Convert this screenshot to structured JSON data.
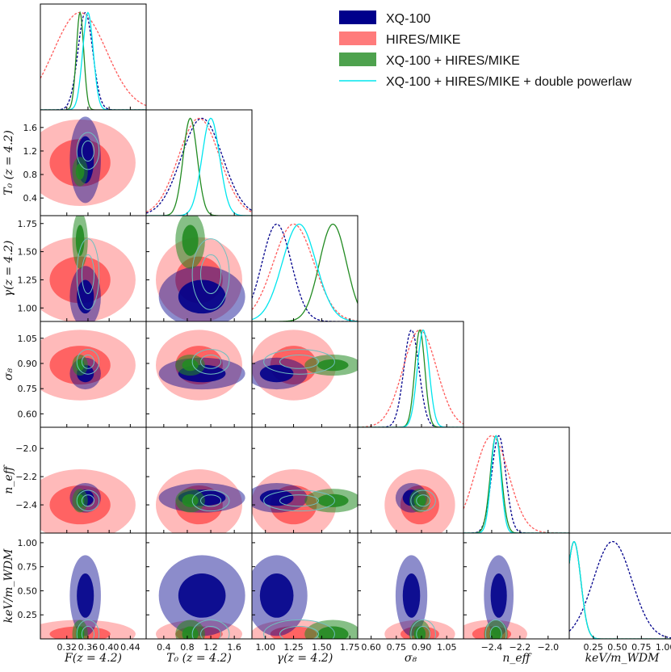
{
  "chart_data": {
    "type": "corner",
    "title": "",
    "parameters": [
      {
        "key": "F",
        "label": "F(z = 4.2)",
        "range": [
          0.27,
          0.47
        ],
        "ticks": [
          0.32,
          0.36,
          0.4,
          0.44
        ],
        "tick_labels": [
          "0.32",
          "0.36",
          "0.40",
          "0.44"
        ]
      },
      {
        "key": "T0",
        "label": "T₀ (z = 4.2)",
        "range": [
          0.1,
          1.9
        ],
        "ticks": [
          0.4,
          0.8,
          1.2,
          1.6
        ],
        "tick_labels": [
          "0.4",
          "0.8",
          "1.2",
          "1.6"
        ]
      },
      {
        "key": "gamma",
        "label": "γ(z = 4.2)",
        "range": [
          0.88,
          1.82
        ],
        "ticks": [
          1.0,
          1.25,
          1.5,
          1.75
        ],
        "tick_labels": [
          "1.00",
          "1.25",
          "1.50",
          "1.75"
        ]
      },
      {
        "key": "sigma8",
        "label": "σ₈",
        "range": [
          0.52,
          1.15
        ],
        "ticks": [
          0.6,
          0.75,
          0.9,
          1.05
        ],
        "tick_labels": [
          "0.60",
          "0.75",
          "0.90",
          "1.05"
        ]
      },
      {
        "key": "neff",
        "label": "n_eff",
        "range": [
          -2.6,
          -1.85
        ],
        "ticks": [
          -2.4,
          -2.2,
          -2.0
        ],
        "tick_labels": [
          "−2.4",
          "−2.2",
          "−2.0"
        ]
      },
      {
        "key": "wdm",
        "label": "keV/m_WDM",
        "range": [
          0.0,
          1.1
        ],
        "ticks": [
          0.25,
          0.5,
          0.75,
          1.0
        ],
        "tick_labels": [
          "0.25",
          "0.50",
          "0.75",
          "1.00"
        ]
      }
    ],
    "series": [
      {
        "name": "XQ-100",
        "color": "#00008b",
        "style": "dashed",
        "means": [
          0.355,
          1.05,
          1.1,
          0.84,
          -2.35,
          0.45
        ],
        "sigmas": [
          0.014,
          0.35,
          0.13,
          0.045,
          0.05,
          0.2
        ]
      },
      {
        "name": "HIRES/MIKE",
        "color": "#ff5a5a",
        "style": "dashed",
        "means": [
          0.345,
          1.0,
          1.25,
          0.89,
          -2.4,
          0.05
        ],
        "sigmas": [
          0.05,
          0.35,
          0.18,
          0.1,
          0.12,
          0.07
        ]
      },
      {
        "name": "XQ-100 + HIRES/MIKE",
        "color": "#228b22",
        "style": "solid",
        "means": [
          0.345,
          0.85,
          1.6,
          0.89,
          -2.37,
          0.05
        ],
        "sigmas": [
          0.007,
          0.12,
          0.12,
          0.03,
          0.04,
          0.07
        ]
      },
      {
        "name": "XQ-100 + HIRES/MIKE + double powerlaw",
        "color": "#00e5ee",
        "style": "solid",
        "means": [
          0.36,
          1.2,
          1.3,
          0.91,
          -2.37,
          0.05
        ],
        "sigmas": [
          0.01,
          0.15,
          0.15,
          0.035,
          0.035,
          0.07
        ]
      }
    ],
    "legend": {
      "position": "top-right",
      "entries": [
        "XQ-100",
        "HIRES/MIKE",
        "XQ-100 + HIRES/MIKE",
        "XQ-100 + HIRES/MIKE + double powerlaw"
      ]
    }
  }
}
